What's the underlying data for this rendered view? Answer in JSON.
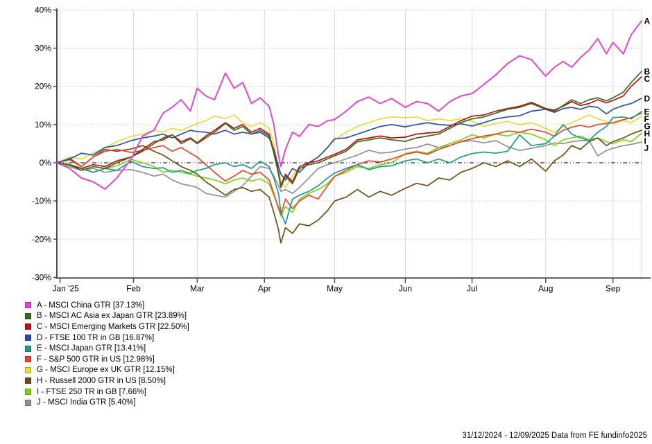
{
  "footer": {
    "text": "31/12/2024 - 12/09/2025 Data from FE fundinfo2025"
  },
  "chart_data": {
    "type": "line",
    "title": "",
    "xlabel": "",
    "ylabel": "",
    "grid": true,
    "legend_position": "bottom-left",
    "y_axis": {
      "unit": "%",
      "ylim": [
        -30,
        40
      ],
      "ticks": [
        40,
        30,
        20,
        10,
        0,
        -10,
        -20,
        -30
      ],
      "tick_labels": [
        "40%",
        "30%",
        "20%",
        "10%",
        "0%",
        "-10%",
        "-20%",
        "-30%"
      ]
    },
    "x_axis": {
      "unit": "days since 31/12/2024",
      "range_days": [
        0,
        255
      ],
      "tick_days": [
        1,
        32,
        60,
        91,
        121,
        152,
        182,
        213,
        244
      ],
      "tick_labels": [
        "Jan '25",
        "Feb",
        "Mar",
        "Apr",
        "May",
        "Jun",
        "Jul",
        "Aug",
        "Sep"
      ],
      "day_to_position_anchors": [
        [
          0,
          0
        ],
        [
          1,
          0.0055
        ],
        [
          32,
          0.131
        ],
        [
          60,
          0.24
        ],
        [
          91,
          0.355
        ],
        [
          121,
          0.475
        ],
        [
          152,
          0.596
        ],
        [
          182,
          0.71
        ],
        [
          213,
          0.836
        ],
        [
          244,
          0.951
        ],
        [
          255,
          1
        ]
      ]
    },
    "sample_days": [
      0,
      5,
      10,
      15,
      20,
      25,
      31,
      36,
      41,
      45,
      49,
      53,
      57,
      60,
      64,
      68,
      73,
      77,
      81,
      85,
      89,
      93,
      95,
      97,
      98,
      100,
      103,
      106,
      110,
      114,
      118,
      121,
      126,
      131,
      136,
      141,
      146,
      152,
      157,
      162,
      167,
      172,
      177,
      182,
      187,
      192,
      197,
      202,
      207,
      213,
      217,
      221,
      225,
      229,
      233,
      237,
      241,
      244,
      248,
      251,
      255
    ],
    "series": [
      {
        "id": "A",
        "name": "MSCI China GTR",
        "final_pct": "37.13",
        "legend_label": "A - MSCI China GTR [37.13%]",
        "color": "#e345d2",
        "values": [
          0,
          -1.5,
          -4,
          -5,
          -6.9,
          -4,
          1,
          7,
          8.5,
          13,
          14.5,
          16.5,
          13.5,
          19.5,
          17.5,
          16.5,
          23.5,
          19.5,
          21,
          15.5,
          17,
          14.8,
          10,
          2,
          -1,
          3.5,
          8,
          6.9,
          10,
          9.5,
          11,
          11.3,
          13.5,
          16,
          17.2,
          15.5,
          16.8,
          14.5,
          16,
          15.5,
          13.5,
          16,
          17.5,
          18.1,
          20.5,
          23,
          26,
          28,
          27,
          22.7,
          25,
          26.5,
          25,
          27.5,
          29.5,
          32.5,
          28.5,
          31.5,
          28.5,
          33.5,
          37.13
        ]
      },
      {
        "id": "B",
        "name": "MSCI AC Asia ex Japan GTR",
        "final_pct": "23.89",
        "legend_label": "B - MSCI AC Asia ex Japan GTR [23.89%]",
        "color": "#3a6b1c",
        "values": [
          0,
          -0.5,
          -2,
          -1,
          -1.5,
          0,
          1.5,
          3,
          5,
          6.5,
          7.3,
          5,
          6.3,
          5,
          6.5,
          8,
          10.3,
          8.5,
          9.5,
          7.5,
          8.5,
          7,
          2.5,
          -3,
          -6.5,
          -3.5,
          -5.5,
          -1.5,
          -0.5,
          0,
          1,
          1.8,
          3,
          5.5,
          6,
          6.5,
          6,
          5.6,
          6.5,
          7,
          7.5,
          9,
          10.5,
          11.5,
          12,
          13,
          14,
          14.5,
          15.5,
          14,
          13.5,
          15,
          16.5,
          15.5,
          16.5,
          17,
          16.2,
          17,
          18.5,
          21,
          23.89
        ]
      },
      {
        "id": "C",
        "name": "MSCI Emerging Markets GTR",
        "final_pct": "22.50",
        "legend_label": "C - MSCI Emerging Markets GTR [22.50%]",
        "color": "#bf0f0f",
        "values": [
          0,
          -0.5,
          -1.5,
          -0.5,
          -1,
          0.5,
          1.5,
          3.5,
          5.5,
          6,
          7.3,
          5.5,
          6.5,
          5.2,
          7,
          8.5,
          10.5,
          9,
          10,
          8,
          9,
          7.5,
          3,
          -2.5,
          -6,
          -3,
          -5,
          -1,
          0,
          0.5,
          1.5,
          2.2,
          3.5,
          6,
          6.5,
          7,
          6.5,
          6.7,
          7.5,
          7.8,
          8,
          9.5,
          11,
          12.2,
          12.5,
          13.5,
          14.2,
          14.8,
          15.8,
          14.2,
          13.8,
          14.8,
          16,
          15,
          15.5,
          16.5,
          15.7,
          16.3,
          17.5,
          20,
          22.5
        ]
      },
      {
        "id": "D",
        "name": "FTSE 100 TR in GB",
        "final_pct": "16.87",
        "legend_label": "D - FTSE 100 TR in GB [16.87%]",
        "color": "#2a50a5",
        "values": [
          0,
          1,
          2.5,
          2,
          4,
          4.5,
          5.8,
          6.5,
          7,
          7.5,
          6.5,
          7.5,
          8.5,
          8.2,
          8,
          7.5,
          8.5,
          7.5,
          8,
          7.5,
          8,
          6.5,
          3.5,
          -1,
          -3,
          -4.5,
          -1.5,
          -2.5,
          0,
          1.5,
          4,
          6.3,
          6.5,
          7.5,
          8.5,
          9.5,
          10,
          9.4,
          10,
          10.5,
          10,
          9.8,
          10.2,
          9.6,
          10.5,
          11.5,
          12,
          12.3,
          13.5,
          14,
          13.2,
          14.2,
          14.5,
          14,
          14.8,
          14.5,
          12.8,
          14,
          15,
          15.5,
          16.87
        ]
      },
      {
        "id": "E",
        "name": "MSCI Japan GTR",
        "final_pct": "13.41",
        "legend_label": "E - MSCI Japan GTR [13.41%]",
        "color": "#1f998c",
        "values": [
          0,
          -0.5,
          -1.5,
          -2.5,
          -1.5,
          -2,
          0.4,
          -1,
          -1.5,
          -1.3,
          -2.5,
          -2,
          -2.8,
          -2,
          -1.5,
          -0.5,
          0,
          -1,
          -0.5,
          -1.5,
          0.4,
          -1,
          -4,
          -8,
          -13,
          -16,
          -9.5,
          -8.5,
          -7.5,
          -6,
          -4,
          -2.7,
          -1.5,
          -0.5,
          -1.8,
          -1,
          -0.8,
          0.5,
          1,
          0,
          1,
          0,
          1.5,
          2.4,
          2.8,
          2.5,
          3,
          7.3,
          4.5,
          5,
          7,
          10,
          7.5,
          6.5,
          5.8,
          8,
          9.5,
          11.8,
          12,
          11.5,
          13.41
        ]
      },
      {
        "id": "F",
        "name": "S&P 500 GTR in US",
        "final_pct": "12.98",
        "legend_label": "F - S&P 500 GTR in US [12.98%]",
        "color": "#ea4529",
        "values": [
          0,
          0.8,
          -1,
          1.5,
          3,
          3.5,
          2.7,
          3.2,
          4,
          4.5,
          3,
          4,
          2.5,
          1.5,
          -0.5,
          -2.5,
          -4.8,
          -3.5,
          -2,
          -3,
          -2.5,
          -4.5,
          -8,
          -12,
          -13.5,
          -9.5,
          -12,
          -10,
          -8.5,
          -9.5,
          -6,
          -3.6,
          -2,
          -0.5,
          0.5,
          0.2,
          1,
          2.2,
          2.8,
          2.2,
          3.5,
          4.5,
          5.5,
          6.3,
          7,
          7.5,
          8.3,
          8,
          8.8,
          8,
          6.9,
          8.5,
          9.3,
          9.8,
          9.3,
          10,
          10.3,
          10.5,
          11.3,
          11.8,
          12.98
        ]
      },
      {
        "id": "G",
        "name": "MSCI Europe ex UK GTR",
        "final_pct": "12.15",
        "legend_label": "G - MSCI Europe ex UK GTR [12.15%]",
        "color": "#dfdf3a",
        "values": [
          0,
          1.5,
          1,
          2.5,
          4,
          5.5,
          6.9,
          7.5,
          8.5,
          8,
          9,
          8.5,
          9.5,
          10.3,
          11,
          12.2,
          11.5,
          12.5,
          10.5,
          9.5,
          10.5,
          9,
          5,
          -2,
          -5,
          -6.5,
          -3.5,
          -1,
          0,
          1.5,
          4,
          6,
          8,
          9.5,
          10.5,
          11.5,
          12,
          11.8,
          12,
          11,
          11.5,
          11,
          11.5,
          10.9,
          9.5,
          10.3,
          10.8,
          10,
          10.5,
          9,
          8,
          9.5,
          10.5,
          11.5,
          12.5,
          11.5,
          10.8,
          10.2,
          11,
          10.5,
          12.15
        ]
      },
      {
        "id": "H",
        "name": "Russell 2000 GTR in US",
        "final_pct": "8.50",
        "legend_label": "H - Russell 2000 GTR in US [8.50%]",
        "color": "#6e4d0e",
        "values": [
          0,
          1.2,
          -1,
          1.5,
          3.5,
          3,
          3.6,
          4.5,
          3,
          2,
          0.5,
          -1,
          -2,
          -3,
          -5,
          -6.5,
          -8.5,
          -7,
          -6.5,
          -7.5,
          -7,
          -9,
          -13,
          -17.5,
          -21,
          -17,
          -18.5,
          -16,
          -16.5,
          -15,
          -12.5,
          -10,
          -9,
          -7,
          -9,
          -7.5,
          -8.5,
          -6.7,
          -5.4,
          -6,
          -4,
          -4.5,
          -2.5,
          -1.5,
          0,
          -1,
          0.5,
          -1,
          1,
          -2.2,
          0.5,
          2,
          4.5,
          3.5,
          5.5,
          6.5,
          4.5,
          5.5,
          6.5,
          7.5,
          8.5
        ]
      },
      {
        "id": "I",
        "name": "FTSE 250 TR in GB",
        "final_pct": "7.66",
        "legend_label": "I - FTSE 250 TR in GB [7.66%]",
        "color": "#7cd415",
        "values": [
          0,
          -0.8,
          -1.5,
          -2.5,
          -1.5,
          -0.8,
          0.9,
          0,
          -1,
          -2.5,
          -2,
          -2.5,
          -3,
          -3.5,
          -4,
          -4.5,
          -5.5,
          -4.5,
          -4,
          -4.8,
          -4.2,
          -5.5,
          -8.5,
          -11.5,
          -14,
          -11.5,
          -13,
          -9.5,
          -8,
          -7,
          -5.5,
          -3.5,
          -2.5,
          -1,
          -1.5,
          -0.5,
          0,
          2.4,
          3,
          2.5,
          4,
          5,
          6,
          7.3,
          6.5,
          7.5,
          7,
          8,
          7.5,
          6,
          4.5,
          6,
          6.5,
          7,
          6,
          6.5,
          5.5,
          5,
          6,
          5.5,
          7.66
        ]
      },
      {
        "id": "J",
        "name": "MSCI India GTR",
        "final_pct": "5.40",
        "legend_label": "J - MSCI India GTR [5.40%]",
        "color": "#919191",
        "values": [
          0,
          -1,
          -2,
          -1.5,
          -2.5,
          -2,
          -1.8,
          -2.5,
          -3.5,
          -3,
          -4.5,
          -5.5,
          -6,
          -6.5,
          -8,
          -8.5,
          -9,
          -7.5,
          -6,
          -3.5,
          -1,
          -1.5,
          -3.5,
          -6,
          -7.5,
          -7,
          -8,
          -6.5,
          -4,
          -1.5,
          -0.5,
          0,
          1,
          2,
          3.3,
          2.5,
          2.8,
          3.6,
          4,
          4.9,
          4,
          4.5,
          5.5,
          5.8,
          5.2,
          5.8,
          4.2,
          3.2,
          3.8,
          4.5,
          5.2,
          5,
          5.5,
          5.8,
          5.8,
          1.8,
          3.2,
          3.8,
          4.5,
          4.8,
          5.4
        ]
      }
    ]
  }
}
